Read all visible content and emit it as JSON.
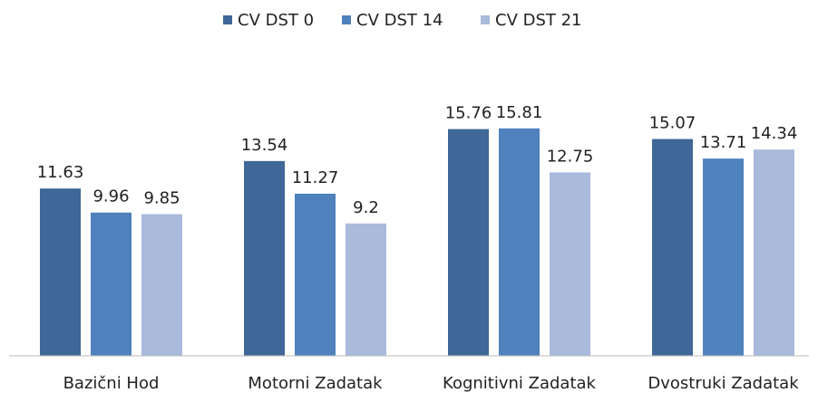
{
  "chart_data": {
    "type": "bar",
    "categories": [
      "Bazični Hod",
      "Motorni Zadatak",
      "Kognitivni Zadatak",
      "Dvostruki Zadatak"
    ],
    "series": [
      {
        "name": "CV DST 0",
        "color": "#3f6797",
        "values": [
          11.63,
          13.54,
          15.76,
          15.07
        ]
      },
      {
        "name": "CV DST 14",
        "color": "#4f81bd",
        "values": [
          9.96,
          11.27,
          15.81,
          13.71
        ]
      },
      {
        "name": "CV DST 21",
        "color": "#a9badb",
        "values": [
          9.85,
          9.2,
          12.75,
          14.34
        ]
      }
    ],
    "ylim": [
      0,
      18
    ],
    "legend": "top"
  }
}
